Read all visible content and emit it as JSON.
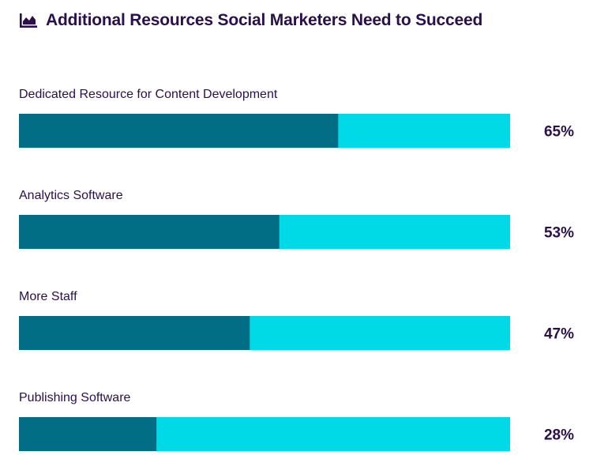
{
  "header": {
    "icon": "bar-chart-icon",
    "title": "Additional Resources Social Marketers Need to Succeed"
  },
  "colors": {
    "title": "#2a0f4b",
    "bar_fill": "#026e85",
    "bar_track": "#00dae6"
  },
  "chart_data": {
    "type": "bar",
    "orientation": "horizontal",
    "title": "Additional Resources Social Marketers Need to Succeed",
    "categories": [
      "Dedicated Resource for Content Development",
      "Analytics Software",
      "More Staff",
      "Publishing Software"
    ],
    "values": [
      65,
      53,
      47,
      28
    ],
    "value_labels": [
      "65%",
      "53%",
      "47%",
      "28%"
    ],
    "unit": "%",
    "xlim": [
      0,
      100
    ],
    "grid": false,
    "legend": "none"
  }
}
